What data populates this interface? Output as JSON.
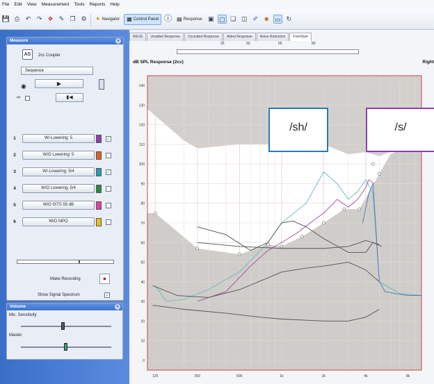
{
  "menu": [
    "File",
    "Edit",
    "View",
    "Measurement",
    "Tools",
    "Reports",
    "Help"
  ],
  "toolbar": {
    "navigator_label": "Navigator",
    "control_panel_label": "Control Panel",
    "response_label": "Response"
  },
  "measure_panel": {
    "title": "Measure",
    "coupler_label": "2cc Coupler",
    "mode_value": "Sequence",
    "make_recording_label": "Make Recording",
    "show_signal_spectrum_label": "Show Signal Spectrum",
    "programs": [
      {
        "num": "1",
        "label": "W/-Lowering: 5",
        "color": "#8a3fb8",
        "checked": true
      },
      {
        "num": "2",
        "label": "W/O Lowering: 5",
        "color": "#e06020",
        "checked": false
      },
      {
        "num": "3",
        "label": "W/-Lowering: 5/4",
        "color": "#20a0b0",
        "checked": true
      },
      {
        "num": "4",
        "label": "W/O Lowering: 5/4",
        "color": "#2a8a3a",
        "checked": false
      },
      {
        "num": "5",
        "label": "W/O ISTS 55 dB",
        "color": "#e040a0",
        "checked": false
      },
      {
        "num": "6",
        "label": "W/O MPO",
        "color": "#e8c020",
        "checked": false
      }
    ]
  },
  "volume_panel": {
    "title": "Volume",
    "mic_label": "Mic. Sensitivity",
    "master_label": "Master"
  },
  "tabs": [
    "REUG",
    "Unaided Response",
    "Occluded Response",
    "Aided Response",
    "Noise Reduction",
    "FreeStyle"
  ],
  "active_tab": 5,
  "ruler_ticks": [
    "25",
    "50",
    "65",
    "80"
  ],
  "chart_title": "dB SPL Response (2cc)",
  "chart_title_right": "Right",
  "bubbles": [
    {
      "text": "/sh/",
      "color": "#2a78b8"
    },
    {
      "text": "/s/",
      "color": "#8a40b0"
    }
  ],
  "chart_data": {
    "type": "line",
    "xlabel": "",
    "ylabel": "",
    "x_ticks": [
      "125",
      "250",
      "500",
      "1k",
      "2k",
      "4k",
      "8k"
    ],
    "x_tick_freqs": [
      125,
      250,
      500,
      1000,
      2000,
      4000,
      8000
    ],
    "y_ticks": [
      0,
      10,
      20,
      30,
      40,
      50,
      60,
      70,
      80,
      90,
      100,
      110,
      120,
      130,
      140
    ],
    "xlim": [
      110,
      10000
    ],
    "ylim": [
      -5,
      145
    ],
    "grid": true,
    "threshold_points": {
      "x": [
        125,
        250,
        500,
        800,
        1000,
        1400,
        2000,
        2800,
        3600,
        5000
      ],
      "y": [
        75,
        57,
        54,
        59,
        58,
        63,
        70,
        77,
        77,
        95
      ]
    },
    "mpo_points": {
      "x": [
        4500,
        7000
      ],
      "y": [
        100,
        110
      ]
    },
    "series": [
      {
        "color": "#60b8c0",
        "x": [
          125,
          150,
          200,
          300,
          500,
          800,
          1000,
          1500,
          2000,
          2500,
          3000,
          3500,
          4000,
          4500,
          5000,
          7000,
          10000
        ],
        "y": [
          38,
          30,
          31,
          36,
          45,
          60,
          70,
          80,
          96,
          90,
          82,
          86,
          92,
          85,
          40,
          34,
          33
        ]
      },
      {
        "color": "#a050a0",
        "x": [
          250,
          400,
          600,
          800,
          1000,
          1300,
          1600,
          2000,
          2500,
          3000,
          3500,
          4000,
          4200,
          4600
        ],
        "y": [
          30,
          35,
          48,
          56,
          60,
          65,
          70,
          75,
          82,
          78,
          82,
          88,
          92,
          90
        ]
      },
      {
        "color": "#505050",
        "x": [
          250,
          400,
          600,
          800,
          1000,
          1200,
          1500,
          2000,
          3000,
          4000,
          4500,
          5200
        ],
        "y": [
          68,
          64,
          56,
          60,
          70,
          71,
          68,
          62,
          55,
          55,
          60,
          58
        ]
      },
      {
        "color": "#505050",
        "x": [
          120,
          180,
          300,
          500,
          800,
          1000,
          1500,
          2000,
          3000,
          4000,
          5000
        ],
        "y": [
          38,
          33,
          32,
          36,
          42,
          45,
          47,
          48,
          50,
          46,
          40
        ]
      },
      {
        "color": "#505050",
        "x": [
          120,
          200,
          400,
          700,
          1000,
          2000,
          3000,
          4000,
          5000
        ],
        "y": [
          28,
          26,
          24,
          22,
          21,
          20,
          20,
          22,
          26
        ]
      },
      {
        "color": "#505050",
        "x": [
          250,
          500,
          1000,
          2000,
          3000,
          4000,
          5000
        ],
        "y": [
          60,
          58,
          57,
          57,
          58,
          61,
          59
        ]
      },
      {
        "color": "#4878b0",
        "x": [
          3800,
          4200,
          4500,
          5000,
          5500,
          6500,
          8000,
          10000
        ],
        "y": [
          70,
          85,
          90,
          40,
          35,
          34,
          33,
          33
        ]
      }
    ]
  }
}
